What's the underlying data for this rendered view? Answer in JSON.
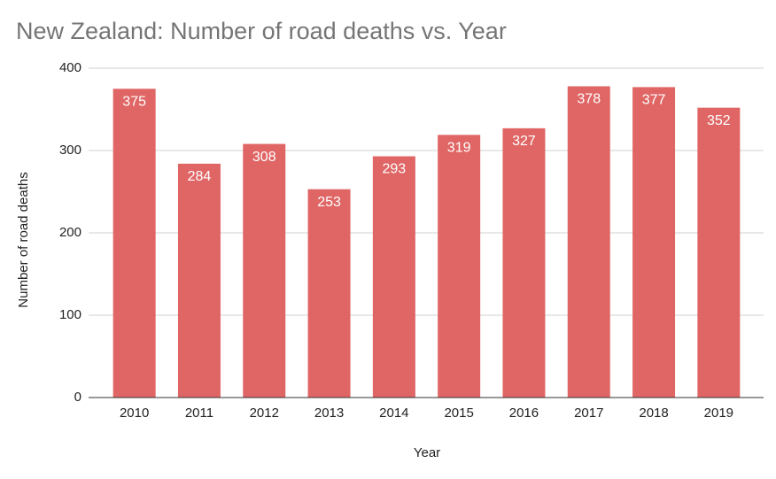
{
  "chart_data": {
    "type": "bar",
    "title": "New Zealand: Number of road deaths vs. Year",
    "x_label": "Year",
    "y_label": "Number of road deaths",
    "categories": [
      "2010",
      "2011",
      "2012",
      "2013",
      "2014",
      "2015",
      "2016",
      "2017",
      "2018",
      "2019"
    ],
    "values": [
      375,
      284,
      308,
      253,
      293,
      319,
      327,
      378,
      377,
      352
    ],
    "color": "#e06666",
    "ylim": [
      0,
      400
    ],
    "yticks": [
      0,
      100,
      200,
      300,
      400
    ],
    "grid": true
  }
}
